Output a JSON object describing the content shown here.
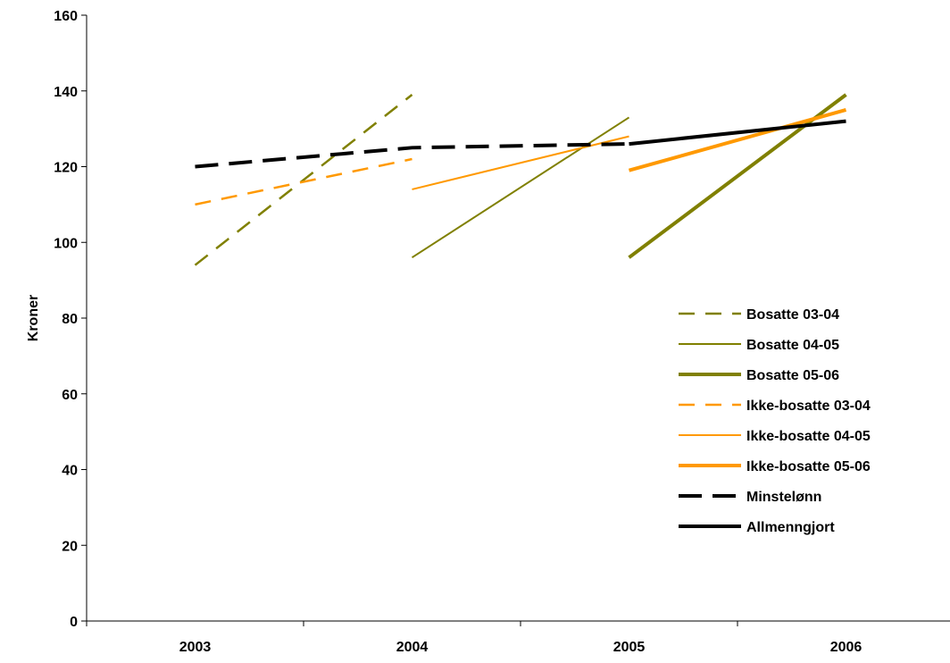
{
  "chart_data": {
    "type": "line",
    "title": "",
    "xlabel": "",
    "ylabel": "Kroner",
    "categories": [
      "2003",
      "2004",
      "2005",
      "2006"
    ],
    "ylim": [
      0,
      160
    ],
    "y_ticks": [
      0,
      20,
      40,
      60,
      80,
      100,
      120,
      140,
      160
    ],
    "grid": false,
    "legend_position": "right",
    "series": [
      {
        "name": "Bosatte 03-04",
        "color": "#808000",
        "style": "dashed",
        "weight": "normal",
        "points": [
          {
            "x": "2003",
            "y": 94
          },
          {
            "x": "2004",
            "y": 139
          }
        ]
      },
      {
        "name": "Bosatte 04-05",
        "color": "#808000",
        "style": "solid",
        "weight": "thin",
        "points": [
          {
            "x": "2004",
            "y": 96
          },
          {
            "x": "2005",
            "y": 133
          }
        ]
      },
      {
        "name": "Bosatte 05-06",
        "color": "#808000",
        "style": "solid",
        "weight": "thick",
        "points": [
          {
            "x": "2005",
            "y": 96
          },
          {
            "x": "2006",
            "y": 139
          }
        ]
      },
      {
        "name": "Ikke-bosatte 03-04",
        "color": "#FF9900",
        "style": "dashed",
        "weight": "normal",
        "points": [
          {
            "x": "2003",
            "y": 110
          },
          {
            "x": "2004",
            "y": 122
          }
        ]
      },
      {
        "name": "Ikke-bosatte 04-05",
        "color": "#FF9900",
        "style": "solid",
        "weight": "thin",
        "points": [
          {
            "x": "2004",
            "y": 114
          },
          {
            "x": "2005",
            "y": 128
          }
        ]
      },
      {
        "name": "Ikke-bosatte 05-06",
        "color": "#FF9900",
        "style": "solid",
        "weight": "thick",
        "points": [
          {
            "x": "2005",
            "y": 119
          },
          {
            "x": "2006",
            "y": 135
          }
        ]
      },
      {
        "name": "Minstelønn",
        "color": "#000000",
        "style": "dashed",
        "weight": "thick",
        "points": [
          {
            "x": "2003",
            "y": 120
          },
          {
            "x": "2004",
            "y": 125
          },
          {
            "x": "2005",
            "y": 126
          }
        ]
      },
      {
        "name": "Allmenngjort",
        "color": "#000000",
        "style": "solid",
        "weight": "thick",
        "points": [
          {
            "x": "2005",
            "y": 126
          },
          {
            "x": "2006",
            "y": 132
          }
        ]
      }
    ]
  }
}
